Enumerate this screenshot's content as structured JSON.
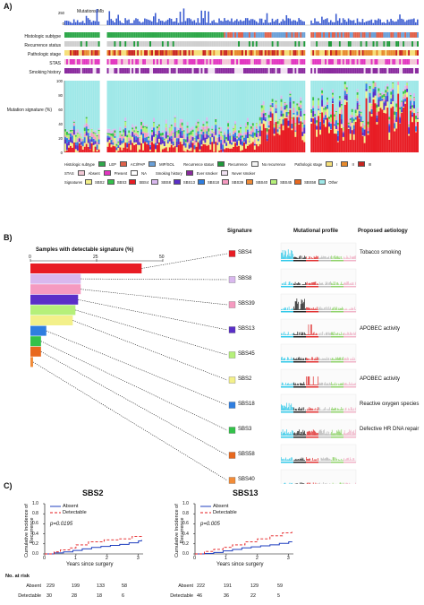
{
  "panel_a": {
    "label": "A)",
    "row_labels": [
      "Mutations/Mb",
      "Histologic subtype",
      "Recurrence status",
      "Pathologic stage",
      "STAS",
      "Smoking history",
      "Mutation signature (%)"
    ],
    "mut_axis": [
      "250",
      "0"
    ],
    "sig_axis": [
      "100",
      "80",
      "60",
      "40",
      "20",
      "0"
    ],
    "legend": {
      "histologic_title": "Histologic subtype",
      "histologic": [
        {
          "label": "LEP",
          "color": "#2ea84a"
        },
        {
          "label": "ACI/PAP",
          "color": "#e0614a"
        },
        {
          "label": "MIP/SOL",
          "color": "#6aa0d8"
        }
      ],
      "recurrence_title": "Recurrence status",
      "recurrence": [
        {
          "label": "Recurrence",
          "color": "#1e9a3a"
        },
        {
          "label": "No recurrence",
          "color": "#f4f4f4"
        }
      ],
      "stage_title": "Pathologic stage",
      "stage": [
        {
          "label": "I",
          "color": "#f6e07a"
        },
        {
          "label": "II",
          "color": "#e88a2c"
        },
        {
          "label": "III",
          "color": "#c8231e"
        }
      ],
      "stas_title": "STAS",
      "stas": [
        {
          "label": "Absent",
          "color": "#f2c9d6"
        },
        {
          "label": "Present",
          "color": "#e235c0"
        }
      ],
      "na": {
        "label": "NA",
        "color": "#ffffff"
      },
      "smoking_title": "Smoking history",
      "smoking": [
        {
          "label": "Ever smoker",
          "color": "#8a2a9e"
        },
        {
          "label": "Never smoker",
          "color": "#f1e2f2"
        }
      ],
      "signatures_title": "Signatures",
      "signatures": [
        {
          "label": "SBS2",
          "color": "#f3f08a"
        },
        {
          "label": "SBS3",
          "color": "#33c24a"
        },
        {
          "label": "SBS4",
          "color": "#e81c24"
        },
        {
          "label": "SBS8",
          "color": "#d9b8ee"
        },
        {
          "label": "SBS13",
          "color": "#5a2fc8"
        },
        {
          "label": "SBS18",
          "color": "#2f7ee0"
        },
        {
          "label": "SBS39",
          "color": "#f59ac0"
        },
        {
          "label": "SBS40",
          "color": "#f28c38"
        },
        {
          "label": "SBS45",
          "color": "#b5f07a"
        },
        {
          "label": "SBS58",
          "color": "#e8681e"
        },
        {
          "label": "Other",
          "color": "#9fe8e8"
        }
      ]
    }
  },
  "panel_b": {
    "label": "B)",
    "chart_title": "Samples with detectable signature (%)",
    "axis_ticks": [
      "0",
      "25",
      "50"
    ],
    "col_headers": {
      "signature": "Signature",
      "profile": "Mutational profile",
      "aetiology": "Proposed aetiology"
    },
    "signatures": [
      {
        "name": "SBS4",
        "color": "#e81c24",
        "aetiology": "Tobacco smoking"
      },
      {
        "name": "SBS8",
        "color": "#d9b8ee",
        "aetiology": ""
      },
      {
        "name": "SBS39",
        "color": "#f59ac0",
        "aetiology": ""
      },
      {
        "name": "SBS13",
        "color": "#5a2fc8",
        "aetiology": "APOBEC activity"
      },
      {
        "name": "SBS45",
        "color": "#b5f07a",
        "aetiology": ""
      },
      {
        "name": "SBS2",
        "color": "#f3f08a",
        "aetiology": "APOBEC activity"
      },
      {
        "name": "SBS18",
        "color": "#2f7ee0",
        "aetiology": "Reactive oxygen species"
      },
      {
        "name": "SBS3",
        "color": "#33c24a",
        "aetiology": "Defective HR DNA repair"
      },
      {
        "name": "SBS58",
        "color": "#e8681e",
        "aetiology": ""
      },
      {
        "name": "SBS40",
        "color": "#f28c38",
        "aetiology": ""
      }
    ]
  },
  "chart_data": [
    {
      "type": "bar",
      "title": "Samples with detectable signature (%)",
      "categories": [
        "SBS4",
        "SBS8",
        "SBS39",
        "SBS13",
        "SBS45",
        "SBS2",
        "SBS18",
        "SBS3",
        "SBS58",
        "SBS40"
      ],
      "values": [
        42,
        19,
        19,
        18,
        17,
        16,
        6,
        4,
        4,
        1
      ],
      "xlim": [
        0,
        50
      ]
    },
    {
      "type": "line",
      "title": "SBS2",
      "xlabel": "Years since surgery",
      "ylabel": "Cumulative Incidence of Recurrence",
      "xlim": [
        0,
        3
      ],
      "ylim": [
        0,
        1.0
      ],
      "xticks": [
        "0",
        "1",
        "2",
        "3"
      ],
      "yticks": [
        "0.0",
        "0.2",
        "0.4",
        "0.6",
        "0.8",
        "1.0"
      ],
      "annotation": "p=0.0195",
      "series": [
        {
          "name": "Absent",
          "x": [
            0,
            0.3,
            0.6,
            0.9,
            1.2,
            1.5,
            1.8,
            2.1,
            2.4,
            2.7,
            3.0,
            3.1
          ],
          "y": [
            0,
            0.02,
            0.04,
            0.07,
            0.1,
            0.13,
            0.15,
            0.17,
            0.19,
            0.22,
            0.26,
            0.28
          ]
        },
        {
          "name": "Detectable",
          "x": [
            0,
            0.3,
            0.5,
            0.8,
            1.0,
            1.4,
            1.9,
            2.4,
            2.8,
            3.1
          ],
          "y": [
            0,
            0.04,
            0.08,
            0.12,
            0.18,
            0.24,
            0.28,
            0.3,
            0.35,
            0.36
          ]
        }
      ],
      "risk_table": {
        "title": "No. at risk",
        "rows": [
          {
            "label": "Absent",
            "values": [
              "229",
              "199",
              "133",
              "58"
            ]
          },
          {
            "label": "Detectable",
            "values": [
              "30",
              "28",
              "18",
              "6"
            ]
          }
        ]
      }
    },
    {
      "type": "line",
      "title": "SBS13",
      "xlabel": "Years since surgery",
      "ylabel": "Cumulative Incidence of Recurrence",
      "xlim": [
        0,
        3
      ],
      "ylim": [
        0,
        1.0
      ],
      "xticks": [
        "0",
        "1",
        "2",
        "3"
      ],
      "yticks": [
        "0.0",
        "0.2",
        "0.4",
        "0.6",
        "0.8",
        "1.0"
      ],
      "annotation": "p=0.005",
      "series": [
        {
          "name": "Absent",
          "x": [
            0,
            0.3,
            0.6,
            0.9,
            1.2,
            1.5,
            1.8,
            2.1,
            2.4,
            2.7,
            3.0,
            3.1
          ],
          "y": [
            0,
            0.01,
            0.03,
            0.06,
            0.09,
            0.12,
            0.14,
            0.16,
            0.18,
            0.21,
            0.24,
            0.25
          ]
        },
        {
          "name": "Detectable",
          "x": [
            0,
            0.3,
            0.6,
            0.9,
            1.2,
            1.6,
            2.0,
            2.4,
            2.8,
            3.1
          ],
          "y": [
            0,
            0.05,
            0.09,
            0.13,
            0.18,
            0.24,
            0.3,
            0.36,
            0.42,
            0.45
          ]
        }
      ],
      "risk_table": {
        "title": "No. at risk",
        "rows": [
          {
            "label": "Absent",
            "values": [
              "222",
              "191",
              "129",
              "59"
            ]
          },
          {
            "label": "Detectable",
            "values": [
              "46",
              "36",
              "22",
              "5"
            ]
          }
        ]
      }
    }
  ],
  "panel_c": {
    "label": "C)",
    "legend_absent": "Absent",
    "legend_detectable": "Detectable",
    "absent_color": "#1f3fbf",
    "detectable_color": "#e41a1c"
  }
}
